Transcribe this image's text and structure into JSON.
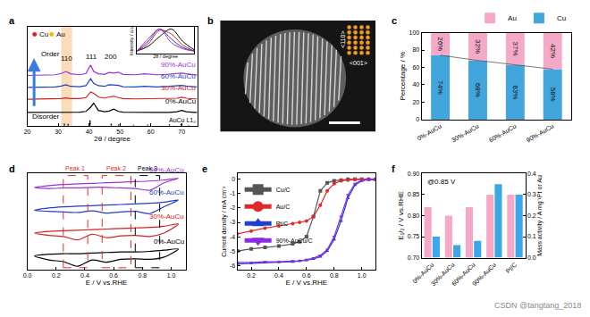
{
  "chart_data": [
    {
      "panel": "a",
      "type": "line",
      "xlabel": "2θ / degree",
      "xlim": [
        20,
        75
      ],
      "xticks": [
        20,
        30,
        40,
        50,
        60,
        70
      ],
      "ylim": [
        0,
        15
      ],
      "tick_labels": "x",
      "x": [
        20,
        25,
        29,
        31,
        32.5,
        34,
        37,
        39,
        40.5,
        41.5,
        43,
        45,
        46.5,
        48,
        49.5,
        51,
        55,
        58,
        62,
        66,
        68.5,
        70,
        71.5,
        74,
        75
      ],
      "series": [
        {
          "name": "90%-AuCu",
          "color": "#9b30d9",
          "values": [
            7.6,
            7.6,
            7.7,
            7.9,
            8.2,
            7.85,
            7.7,
            7.9,
            9.2,
            8.2,
            7.85,
            7.75,
            8.05,
            7.95,
            8.1,
            7.75,
            7.7,
            7.85,
            7.7,
            7.8,
            7.95,
            7.95,
            7.85,
            7.7,
            7.65
          ]
        },
        {
          "name": "60%-AuCu",
          "color": "#1f3fbf",
          "values": [
            5.8,
            5.8,
            5.85,
            6.0,
            6.2,
            5.95,
            5.9,
            6.05,
            7.1,
            6.4,
            6.05,
            5.95,
            6.2,
            6.15,
            6.1,
            5.9,
            5.85,
            5.95,
            5.85,
            5.95,
            6.05,
            6.1,
            6.0,
            5.85,
            5.85
          ]
        },
        {
          "name": "30%-AuCu",
          "color": "#d62020",
          "values": [
            4.0,
            4.0,
            4.05,
            4.1,
            4.2,
            4.1,
            4.1,
            4.25,
            5.1,
            4.9,
            4.35,
            4.15,
            4.35,
            4.45,
            4.25,
            4.1,
            4.05,
            4.05,
            4.05,
            4.05,
            4.15,
            4.3,
            4.15,
            4.05,
            4.05
          ]
        },
        {
          "name": "0%-AuCu",
          "color": "#000000",
          "values": [
            2.0,
            2.0,
            2.0,
            2.0,
            2.0,
            2.0,
            2.05,
            2.15,
            2.8,
            3.4,
            2.3,
            2.1,
            2.2,
            2.5,
            2.15,
            2.05,
            2.0,
            2.0,
            2.0,
            2.0,
            2.1,
            2.3,
            2.1,
            2.0,
            2.0
          ]
        }
      ],
      "reference": {
        "name": "AuCu L1₀",
        "type": "bar",
        "color": "#000000",
        "x": [
          32.0,
          33.2,
          40.3,
          47.2,
          49.6,
          54.4,
          59.0,
          66.0,
          69.8,
          72.3
        ],
        "values": [
          0.3,
          0.25,
          0.8,
          0.3,
          0.2,
          0.12,
          0.15,
          0.2,
          0.25,
          0.1
        ]
      },
      "regions": [
        {
          "label": "110",
          "x0": 31,
          "x1": 34.5,
          "color": "#f6c48c"
        }
      ],
      "annotations": [
        {
          "text": "111",
          "x": 40.8
        },
        {
          "text": "200",
          "x": 47.2
        }
      ],
      "arrow": {
        "top": "Order",
        "bottom": "Disorder",
        "color": "#3b7dd8"
      },
      "species": [
        {
          "name": "Cu",
          "color": "#e0201b"
        },
        {
          "name": "Au",
          "color": "#f2b705"
        }
      ],
      "inset": {
        "type": "line",
        "xlabel": "2θ / degree",
        "ylabel": "Intensity / a.u.",
        "xlim": [
          38,
          43
        ],
        "ylim": [
          0,
          1.1
        ],
        "tick_labels": false,
        "x": [
          38,
          39,
          40,
          41,
          42,
          43
        ],
        "series": [
          {
            "name": "0%-AuCu",
            "color": "#000000",
            "values": [
              0.1,
              0.3,
              0.7,
              1.0,
              0.5,
              0.15
            ]
          },
          {
            "name": "30%-AuCu",
            "color": "#d62020",
            "values": [
              0.1,
              0.4,
              0.95,
              0.8,
              0.35,
              0.1
            ]
          },
          {
            "name": "60%-AuCu",
            "color": "#1f3fbf",
            "values": [
              0.1,
              0.5,
              1.0,
              0.6,
              0.25,
              0.1
            ]
          },
          {
            "name": "90%-AuCu",
            "color": "#9b30d9",
            "values": [
              0.1,
              0.6,
              1.0,
              0.45,
              0.2,
              0.1
            ]
          }
        ]
      }
    },
    {
      "panel": "b",
      "type": "image",
      "inset_labels": [
        "<110>",
        "<001>"
      ]
    },
    {
      "panel": "c",
      "type": "bar",
      "stacked": true,
      "data_labels": true,
      "legend": "top right",
      "categories": [
        "0%-AuCu",
        "30%-AuCu",
        "60%-AuCu",
        "90%-AuCu"
      ],
      "ylabel": "Percentage / %",
      "ylim": [
        0,
        100
      ],
      "yticks": [
        0,
        20,
        40,
        60,
        80,
        100
      ],
      "series": [
        {
          "name": "Cu",
          "color": "#42a5dc",
          "values": [
            74,
            68,
            63,
            58
          ],
          "value_labels": [
            "74%",
            "68%",
            "63%",
            "58%"
          ]
        },
        {
          "name": "Au",
          "color": "#f5a9c8",
          "values": [
            26,
            32,
            37,
            42
          ],
          "value_labels": [
            "26%",
            "32%",
            "37%",
            "42%"
          ]
        }
      ]
    },
    {
      "panel": "d",
      "type": "line",
      "xlabel": "E / V vs.RHE",
      "xlim": [
        0,
        1.1
      ],
      "xticks": [
        {
          "value": 0,
          "label": "0.0"
        },
        0.2,
        0.4,
        0.6,
        0.8,
        {
          "value": 1,
          "label": "1.0"
        }
      ],
      "ylim": [
        -1.2,
        7.2
      ],
      "tick_labels": "x",
      "x": [
        0.05,
        0.15,
        0.25,
        0.35,
        0.45,
        0.55,
        0.65,
        0.75,
        0.85,
        0.95,
        1.05,
        0.95,
        0.85,
        0.75,
        0.65,
        0.55,
        0.45,
        0.35,
        0.25,
        0.15,
        0.05
      ],
      "series": [
        {
          "name": "90%-AuCu",
          "color": "#9b30d9",
          "values": [
            6.0,
            6.15,
            6.25,
            6.3,
            6.35,
            6.4,
            6.45,
            6.5,
            6.55,
            6.65,
            6.8,
            6.4,
            5.75,
            5.9,
            5.95,
            6.0,
            6.0,
            5.95,
            5.95,
            5.9,
            6.0
          ]
        },
        {
          "name": "60%-AuCu",
          "color": "#1f3fbf",
          "values": [
            4.0,
            4.2,
            4.3,
            4.35,
            4.4,
            4.45,
            4.5,
            4.55,
            4.6,
            4.7,
            4.9,
            4.3,
            3.7,
            3.9,
            3.85,
            3.75,
            3.95,
            3.8,
            3.85,
            3.9,
            4.0
          ]
        },
        {
          "name": "30%-AuCu",
          "color": "#d62020",
          "values": [
            2.0,
            2.15,
            2.2,
            2.25,
            2.3,
            2.35,
            2.4,
            2.45,
            2.5,
            2.6,
            2.8,
            2.0,
            1.7,
            1.8,
            1.75,
            1.6,
            1.9,
            1.4,
            1.7,
            1.8,
            2.0
          ]
        },
        {
          "name": "0%-AuCu",
          "color": "#000000",
          "values": [
            0.0,
            0.15,
            0.2,
            0.2,
            0.25,
            0.3,
            0.35,
            0.35,
            0.4,
            0.5,
            0.6,
            -0.1,
            -0.3,
            -0.25,
            -0.3,
            -0.55,
            -0.35,
            -0.9,
            -0.5,
            -0.35,
            0.0
          ]
        }
      ],
      "regions": [
        {
          "label": "Peak 1",
          "x0": 0.25,
          "x1": 0.42,
          "color": "#e0302a",
          "line_style": "dashed"
        },
        {
          "label": "Peak 2",
          "x0": 0.52,
          "x1": 0.72,
          "color": "#e0302a",
          "line_style": "dashed"
        },
        {
          "label": "Peak 3",
          "x0": 0.75,
          "x1": 0.92,
          "color": "#000000",
          "line_style": "dashed"
        }
      ]
    },
    {
      "panel": "e",
      "type": "line",
      "xlabel": "E / V vs.RHE",
      "ylabel": "Current density / mA cm⁻²",
      "xlim": [
        0.1,
        1.1
      ],
      "xticks": [
        0.2,
        0.4,
        0.6,
        0.8,
        {
          "value": 1,
          "label": "1.0"
        }
      ],
      "ylim": [
        -6.3,
        0.4
      ],
      "yticks": [
        -6,
        -5,
        -4,
        -3,
        -2,
        -1,
        0
      ],
      "legend": "top left",
      "x": [
        0.1,
        0.2,
        0.3,
        0.4,
        0.5,
        0.55,
        0.6,
        0.65,
        0.7,
        0.75,
        0.8,
        0.85,
        0.9,
        0.95,
        1.0,
        1.05,
        1.1
      ],
      "series": [
        {
          "name": "Cu/C",
          "color": "#555555",
          "marker": "square",
          "values": [
            -5.0,
            -4.85,
            -4.75,
            -4.65,
            -4.5,
            -4.35,
            -4.0,
            -2.6,
            -0.8,
            -0.25,
            -0.1,
            -0.05,
            0,
            0,
            0,
            0,
            0
          ]
        },
        {
          "name": "Au/C",
          "color": "#e02a2a",
          "marker": "circle",
          "values": [
            -3.8,
            -3.6,
            -3.4,
            -3.25,
            -3.1,
            -3.0,
            -2.9,
            -2.6,
            -1.8,
            -0.8,
            -0.3,
            -0.1,
            -0.05,
            0,
            0,
            0,
            0
          ]
        },
        {
          "name": "Pt/C",
          "color": "#1f3fd0",
          "marker": "triangle-up",
          "values": [
            -5.9,
            -5.85,
            -5.8,
            -5.78,
            -5.75,
            -5.7,
            -5.65,
            -5.55,
            -5.4,
            -5.0,
            -4.2,
            -2.9,
            -1.3,
            -0.4,
            -0.1,
            0,
            0
          ]
        },
        {
          "name": "90%-AuCu/C",
          "color": "#8a2be2",
          "marker": "triangle-down",
          "values": [
            -5.8,
            -5.8,
            -5.75,
            -5.75,
            -5.7,
            -5.68,
            -5.6,
            -5.5,
            -5.3,
            -4.9,
            -4.0,
            -2.6,
            -1.1,
            -0.3,
            -0.08,
            0,
            0
          ]
        }
      ]
    },
    {
      "panel": "f",
      "type": "bar",
      "categories": [
        "0%-AuCu",
        "30%-AuCu",
        "60%-AuCu",
        "90%-AuCu",
        "Pt/C"
      ],
      "ylabel": "E₁/₂ / V vs.RHE",
      "y2label": "Mass activity / A mg⁻¹Pt or Au",
      "ylim": [
        0.7,
        0.9
      ],
      "yticks": [
        {
          "value": 0.7,
          "label": "0.70"
        },
        0.75,
        {
          "value": 0.8,
          "label": "0.80"
        },
        0.85,
        {
          "value": 0.9,
          "label": "0.90"
        }
      ],
      "y2lim": [
        0,
        0.4
      ],
      "y2ticks": [
        {
          "value": 0,
          "label": "0.0"
        },
        0.1,
        0.2,
        0.3,
        0.4
      ],
      "annotations": [
        {
          "text": "@0.85 V"
        }
      ],
      "series": [
        {
          "color": "#f7a8c8",
          "values": [
            0.82,
            0.8,
            0.82,
            0.85,
            0.85
          ]
        },
        {
          "color": "#3aa8e8",
          "values": [
            0.1,
            0.06,
            0.08,
            0.35,
            0.3
          ],
          "axis": "y2"
        }
      ]
    }
  ],
  "watermark": "CSDN @tangtang_2018"
}
